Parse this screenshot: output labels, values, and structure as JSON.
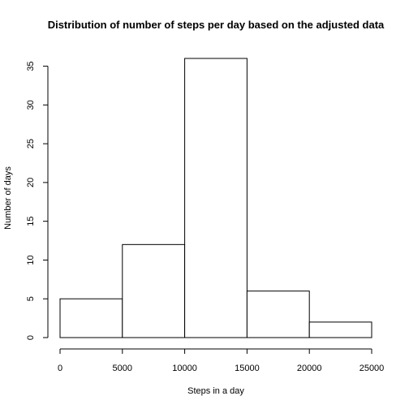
{
  "chart_data": {
    "type": "bar",
    "title": "Distribution of number of steps per day based on the adjusted data",
    "xlabel": "Steps in a day",
    "ylabel": "Number of days",
    "bins": [
      {
        "start": 0,
        "end": 5000,
        "count": 5
      },
      {
        "start": 5000,
        "end": 10000,
        "count": 12
      },
      {
        "start": 10000,
        "end": 15000,
        "count": 36
      },
      {
        "start": 15000,
        "end": 20000,
        "count": 6
      },
      {
        "start": 20000,
        "end": 25000,
        "count": 2
      }
    ],
    "xlim": [
      0,
      25000
    ],
    "ylim": [
      0,
      36
    ],
    "x_ticks": [
      0,
      5000,
      10000,
      15000,
      20000,
      25000
    ],
    "y_ticks": [
      0,
      5,
      10,
      15,
      20,
      25,
      30,
      35
    ],
    "grid": false,
    "legend": "none",
    "colors": {
      "bar_fill": "#ffffff",
      "bar_stroke": "#000000"
    }
  }
}
